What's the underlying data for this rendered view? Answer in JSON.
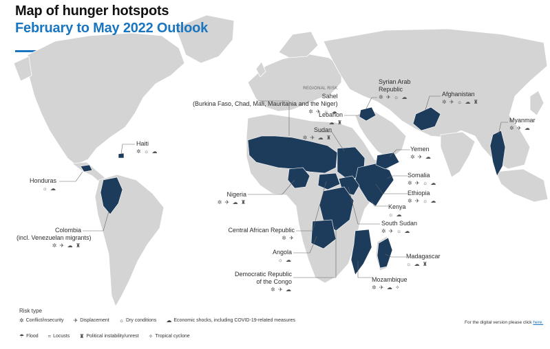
{
  "header": {
    "title": "Map of hunger hotspots",
    "subtitle": "February to May 2022 Outlook"
  },
  "colors": {
    "hotspot": "#1d3c5c",
    "land": "#d4d4d4",
    "accent": "#1a75c0"
  },
  "regional_risk": {
    "tag": "REGIONAL RISK",
    "name": "Sahel",
    "countries": "(Burkina Faso, Chad, Mali, Mauritania and the Niger)",
    "icons": "✲ ✈ ☼ ☁"
  },
  "hotspots": {
    "haiti": {
      "name": "Haiti",
      "icons": "✲ ☼ ☁"
    },
    "honduras": {
      "name": "Honduras",
      "icons": "☼ ☁"
    },
    "colombia": {
      "name": "Colombia",
      "sub": "(incl. Venezuelan migrants)",
      "icons": "✲ ✈ ☁ ♜"
    },
    "syria": {
      "name": "Syrian Arab",
      "name2": "Republic",
      "icons": "✲ ✈ ☼ ☁"
    },
    "afghanistan": {
      "name": "Afghanistan",
      "icons": "✲ ✈ ☼ ☁ ♜"
    },
    "lebanon": {
      "name": "Lebanon",
      "icons": "☁ ♜"
    },
    "sudan": {
      "name": "Sudan",
      "icons": "✲ ✈ ☁ ♜"
    },
    "myanmar": {
      "name": "Myanmar",
      "icons": "✲ ✈ ☁"
    },
    "yemen": {
      "name": "Yemen",
      "icons": "✲ ✈ ☁"
    },
    "somalia": {
      "name": "Somalia",
      "icons": "✲ ✈ ☼ ☁"
    },
    "ethiopia": {
      "name": "Ethiopia",
      "icons": "✲ ✈ ☼ ☁"
    },
    "kenya": {
      "name": "Kenya",
      "icons": "☼ ☁"
    },
    "nigeria": {
      "name": "Nigeria",
      "icons": "✲ ✈ ☁ ♜"
    },
    "car": {
      "name": "Central African Republic",
      "icons": "✲ ✈"
    },
    "south_sudan": {
      "name": "South Sudan",
      "icons": "✲ ✈ ☼ ☁"
    },
    "angola": {
      "name": "Angola",
      "icons": "☼ ☁"
    },
    "madagascar": {
      "name": "Madagascar",
      "icons": "☼ ☁ ♜"
    },
    "drc": {
      "name": "Democratic Republic",
      "name2": "of the Congo",
      "icons": "✲ ✈ ☁"
    },
    "mozambique": {
      "name": "Mozambique",
      "icons": "✲ ✈ ☁ ✧"
    }
  },
  "legend": {
    "title": "Risk type",
    "items": [
      {
        "icon": "✲",
        "label": "Conflict/insecurity"
      },
      {
        "icon": "✈",
        "label": "Displacement"
      },
      {
        "icon": "☼",
        "label": "Dry conditions"
      },
      {
        "icon": "☁",
        "label": "Economic shocks, including COVID-19-related measures"
      },
      {
        "icon": "☂",
        "label": "Flood"
      },
      {
        "icon": "≈",
        "label": "Locusts"
      },
      {
        "icon": "♜",
        "label": "Political instability/unrest"
      },
      {
        "icon": "✧",
        "label": "Tropical cyclone"
      }
    ]
  },
  "footer": {
    "digital_text": "For the digital version please click",
    "digital_link": "here."
  }
}
